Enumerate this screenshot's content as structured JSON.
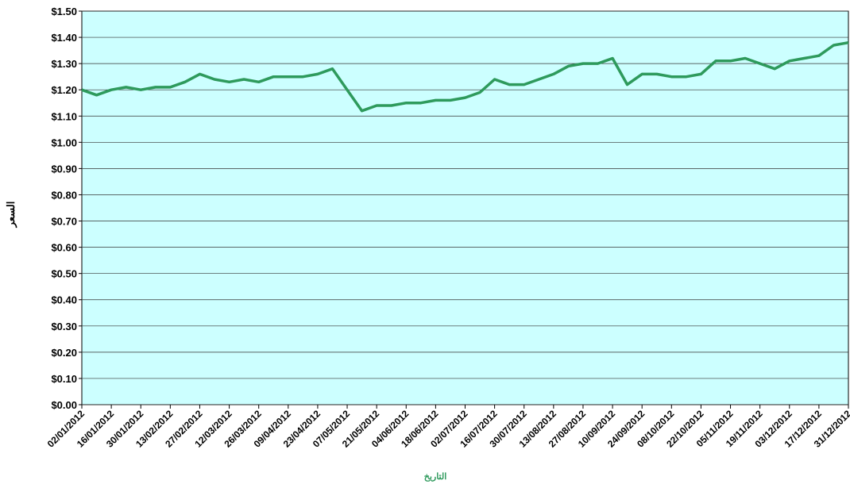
{
  "chart_data": {
    "type": "line",
    "x_label": "التاريخ",
    "y_label": "السعر",
    "x": [
      "02/01/2012",
      "09/01/2012",
      "16/01/2012",
      "23/01/2012",
      "30/01/2012",
      "06/02/2012",
      "13/02/2012",
      "20/02/2012",
      "27/02/2012",
      "05/03/2012",
      "12/03/2012",
      "19/03/2012",
      "26/03/2012",
      "02/04/2012",
      "09/04/2012",
      "16/04/2012",
      "23/04/2012",
      "30/04/2012",
      "07/05/2012",
      "14/05/2012",
      "21/05/2012",
      "28/05/2012",
      "04/06/2012",
      "11/06/2012",
      "18/06/2012",
      "25/06/2012",
      "02/07/2012",
      "09/07/2012",
      "16/07/2012",
      "23/07/2012",
      "30/07/2012",
      "06/08/2012",
      "13/08/2012",
      "20/08/2012",
      "27/08/2012",
      "03/09/2012",
      "10/09/2012",
      "17/09/2012",
      "24/09/2012",
      "01/10/2012",
      "08/10/2012",
      "15/10/2012",
      "22/10/2012",
      "29/10/2012",
      "05/11/2012",
      "12/11/2012",
      "19/11/2012",
      "26/11/2012",
      "03/12/2012",
      "10/12/2012",
      "17/12/2012",
      "24/12/2012",
      "31/12/2012"
    ],
    "series": [
      {
        "color": "#2e9a5c",
        "values": [
          1.2,
          1.18,
          1.2,
          1.21,
          1.2,
          1.21,
          1.21,
          1.23,
          1.26,
          1.24,
          1.23,
          1.24,
          1.23,
          1.25,
          1.25,
          1.25,
          1.26,
          1.28,
          1.2,
          1.12,
          1.14,
          1.14,
          1.15,
          1.15,
          1.16,
          1.16,
          1.17,
          1.19,
          1.24,
          1.22,
          1.22,
          1.24,
          1.26,
          1.29,
          1.3,
          1.3,
          1.32,
          1.22,
          1.26,
          1.26,
          1.25,
          1.25,
          1.26,
          1.31,
          1.31,
          1.32,
          1.3,
          1.28,
          1.31,
          1.32,
          1.33,
          1.37,
          1.38
        ]
      }
    ],
    "xlim": [
      "02/01/2012",
      "31/12/2012"
    ],
    "xticks": [
      "02/01/2012",
      "16/01/2012",
      "30/01/2012",
      "13/02/2012",
      "27/02/2012",
      "12/03/2012",
      "26/03/2012",
      "09/04/2012",
      "23/04/2012",
      "07/05/2012",
      "21/05/2012",
      "04/06/2012",
      "18/06/2012",
      "02/07/2012",
      "16/07/2012",
      "30/07/2012",
      "13/08/2012",
      "27/08/2012",
      "10/09/2012",
      "24/09/2012",
      "08/10/2012",
      "22/10/2012",
      "05/11/2012",
      "19/11/2012",
      "03/12/2012",
      "17/12/2012",
      "31/12/2012"
    ],
    "ylim": [
      0,
      1.5
    ],
    "yticks": [
      {
        "value": 0,
        "label": "$0.00"
      },
      {
        "value": 0.1,
        "label": "$0.10"
      },
      {
        "value": 0.2,
        "label": "$0.20"
      },
      {
        "value": 0.3,
        "label": "$0.30"
      },
      {
        "value": 0.4,
        "label": "$0.40"
      },
      {
        "value": 0.5,
        "label": "$0.50"
      },
      {
        "value": 0.6,
        "label": "$0.60"
      },
      {
        "value": 0.7,
        "label": "$0.70"
      },
      {
        "value": 0.8,
        "label": "$0.80"
      },
      {
        "value": 0.9,
        "label": "$0.90"
      },
      {
        "value": 1,
        "label": "$1.00"
      },
      {
        "value": 1.1,
        "label": "$1.10"
      },
      {
        "value": 1.2,
        "label": "$1.20"
      },
      {
        "value": 1.3,
        "label": "$1.30"
      },
      {
        "value": 1.4,
        "label": "$1.40"
      },
      {
        "value": 1.5,
        "label": "$1.50"
      }
    ],
    "grid": true,
    "background": "#ccffff"
  }
}
